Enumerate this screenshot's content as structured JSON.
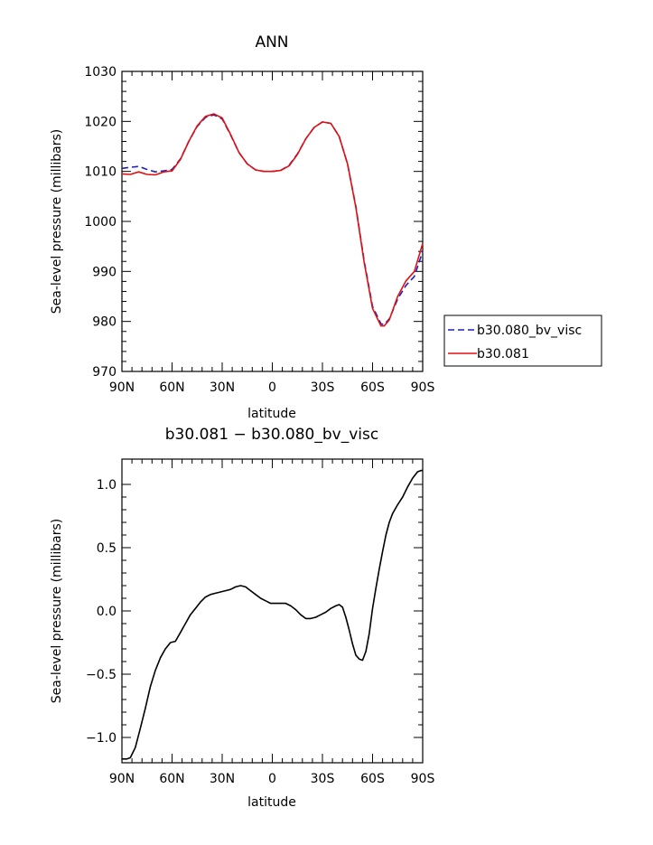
{
  "chart_data": [
    {
      "type": "line",
      "title": "ANN",
      "xlabel": "latitude",
      "ylabel": "Sea-level pressure (millibars)",
      "xlim": [
        90,
        -90
      ],
      "ylim": [
        970,
        1030
      ],
      "x_ticks": [
        90,
        60,
        30,
        0,
        -30,
        -60,
        -90
      ],
      "x_tick_labels": [
        "90N",
        "60N",
        "30N",
        "0",
        "30S",
        "60S",
        "90S"
      ],
      "y_ticks": [
        970,
        980,
        990,
        1000,
        1010,
        1020,
        1030
      ],
      "y_tick_labels": [
        "970",
        "980",
        "990",
        "1000",
        "1010",
        "1020",
        "1030"
      ],
      "legend": "right",
      "grid": false,
      "series": [
        {
          "name": "b30.080_bv_visc",
          "color": "#1f1fbf",
          "style": "dashed",
          "x": [
            90,
            85,
            80,
            75,
            70,
            65,
            60,
            55,
            50,
            45,
            40,
            35,
            30,
            25,
            20,
            15,
            10,
            5,
            0,
            -5,
            -10,
            -15,
            -20,
            -25,
            -30,
            -35,
            -40,
            -45,
            -50,
            -55,
            -60,
            -65,
            -67,
            -70,
            -75,
            -80,
            -85,
            -90
          ],
          "values": [
            1010.6,
            1010.8,
            1011.0,
            1010.4,
            1009.9,
            1010.1,
            1010.4,
            1012.5,
            1016.0,
            1019.0,
            1020.8,
            1021.3,
            1020.5,
            1017.3,
            1013.8,
            1011.5,
            1010.3,
            1010.0,
            1010.0,
            1010.2,
            1011.2,
            1013.5,
            1016.5,
            1018.8,
            1019.9,
            1019.6,
            1017.0,
            1011.5,
            1003.0,
            992.0,
            983.0,
            979.5,
            979.4,
            980.5,
            984.5,
            987.2,
            989.0,
            994.0
          ]
        },
        {
          "name": "b30.081",
          "color": "#e01010",
          "style": "solid",
          "x": [
            90,
            85,
            80,
            75,
            70,
            65,
            60,
            55,
            50,
            45,
            40,
            35,
            30,
            25,
            20,
            15,
            10,
            5,
            0,
            -5,
            -10,
            -15,
            -20,
            -25,
            -30,
            -35,
            -40,
            -45,
            -50,
            -55,
            -60,
            -65,
            -67,
            -70,
            -75,
            -80,
            -85,
            -90
          ],
          "values": [
            1009.5,
            1009.4,
            1009.9,
            1009.4,
            1009.3,
            1009.9,
            1010.1,
            1012.4,
            1016.0,
            1019.1,
            1021.0,
            1021.5,
            1020.7,
            1017.4,
            1013.8,
            1011.5,
            1010.3,
            1010.0,
            1010.0,
            1010.2,
            1011.1,
            1013.4,
            1016.5,
            1018.8,
            1019.9,
            1019.6,
            1017.0,
            1011.5,
            1002.8,
            991.7,
            982.6,
            979.1,
            979.1,
            980.3,
            985.0,
            988.1,
            990.0,
            995.6
          ]
        }
      ]
    },
    {
      "type": "line",
      "title": "b30.081 − b30.080_bv_visc",
      "xlabel": "latitude",
      "ylabel": "Sea-level pressure (millibars)",
      "xlim": [
        90,
        -90
      ],
      "ylim": [
        -1.2,
        1.2
      ],
      "x_ticks": [
        90,
        60,
        30,
        0,
        -30,
        -60,
        -90
      ],
      "x_tick_labels": [
        "90N",
        "60N",
        "30N",
        "0",
        "30S",
        "60S",
        "90S"
      ],
      "y_ticks": [
        -1.0,
        -0.5,
        0.0,
        0.5,
        1.0
      ],
      "y_tick_labels": [
        "−1.0",
        "−0.5",
        "0.0",
        "0.5",
        "1.0"
      ],
      "grid": false,
      "series": [
        {
          "color": "#000000",
          "style": "solid",
          "x": [
            90,
            87,
            85,
            82,
            79,
            76,
            73,
            70,
            67,
            64,
            61,
            58,
            55,
            52,
            49,
            46,
            43,
            40,
            37,
            34,
            31,
            28,
            25,
            22,
            19,
            16,
            13,
            10,
            7,
            4,
            1,
            -2,
            -5,
            -8,
            -11,
            -14,
            -17,
            -20,
            -23,
            -26,
            -29,
            -32,
            -35,
            -38,
            -40,
            -42,
            -44,
            -46,
            -48,
            -50,
            -52,
            -54,
            -56,
            -58,
            -60,
            -62,
            -64,
            -66,
            -68,
            -70,
            -72,
            -75,
            -78,
            -81,
            -84,
            -87,
            -89,
            -90
          ],
          "values": [
            -1.17,
            -1.17,
            -1.16,
            -1.08,
            -0.93,
            -0.77,
            -0.6,
            -0.47,
            -0.37,
            -0.3,
            -0.25,
            -0.24,
            -0.17,
            -0.1,
            -0.03,
            0.02,
            0.07,
            0.11,
            0.13,
            0.14,
            0.15,
            0.16,
            0.17,
            0.19,
            0.2,
            0.19,
            0.16,
            0.13,
            0.1,
            0.08,
            0.06,
            0.06,
            0.06,
            0.06,
            0.04,
            0.01,
            -0.03,
            -0.06,
            -0.06,
            -0.05,
            -0.03,
            -0.01,
            0.02,
            0.04,
            0.05,
            0.03,
            -0.05,
            -0.15,
            -0.26,
            -0.35,
            -0.38,
            -0.39,
            -0.32,
            -0.18,
            0.02,
            0.18,
            0.33,
            0.47,
            0.6,
            0.7,
            0.77,
            0.84,
            0.9,
            0.98,
            1.05,
            1.1,
            1.11,
            1.11
          ]
        }
      ]
    }
  ]
}
